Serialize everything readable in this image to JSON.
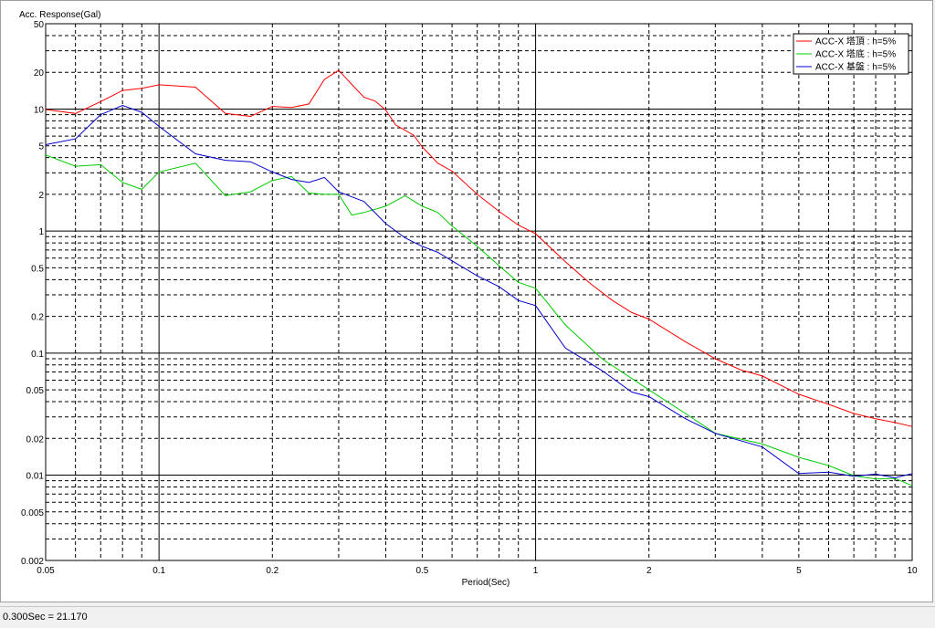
{
  "status": {
    "readout": "0.300Sec = 21.170"
  },
  "chart_data": {
    "type": "line",
    "ylabel": "Acc. Response(Gal)",
    "xlabel": "Period(Sec)",
    "xscale": "log",
    "yscale": "log",
    "xlim": [
      0.05,
      10
    ],
    "ylim": [
      0.002,
      50
    ],
    "grid": true,
    "legend_position": "top-right",
    "x_ticks": [
      {
        "value": 0.05,
        "label": "0.05"
      },
      {
        "value": 0.1,
        "label": "0.1"
      },
      {
        "value": 0.2,
        "label": "0.2"
      },
      {
        "value": 0.5,
        "label": "0.5"
      },
      {
        "value": 1,
        "label": "1"
      },
      {
        "value": 2,
        "label": "2"
      },
      {
        "value": 5,
        "label": "5"
      },
      {
        "value": 10,
        "label": "10"
      }
    ],
    "y_ticks": [
      {
        "value": 50,
        "label": "50"
      },
      {
        "value": 20,
        "label": "20"
      },
      {
        "value": 10,
        "label": "10"
      },
      {
        "value": 5,
        "label": "5"
      },
      {
        "value": 2,
        "label": "2"
      },
      {
        "value": 1,
        "label": "1"
      },
      {
        "value": 0.5,
        "label": "0.5"
      },
      {
        "value": 0.2,
        "label": "0.2"
      },
      {
        "value": 0.1,
        "label": "0.1"
      },
      {
        "value": 0.05,
        "label": "0.05"
      },
      {
        "value": 0.02,
        "label": "0.02"
      },
      {
        "value": 0.01,
        "label": "0.01"
      },
      {
        "value": 0.005,
        "label": "0.005"
      },
      {
        "value": 0.002,
        "label": "0.002"
      }
    ],
    "series": [
      {
        "name": "ACC-X 塔頂 : h=5%",
        "color": "#ff0000",
        "points": [
          [
            0.05,
            9.9
          ],
          [
            0.06,
            9.2
          ],
          [
            0.07,
            11.5
          ],
          [
            0.08,
            14.2
          ],
          [
            0.09,
            14.8
          ],
          [
            0.1,
            15.8
          ],
          [
            0.125,
            15.1
          ],
          [
            0.15,
            9.2
          ],
          [
            0.175,
            8.7
          ],
          [
            0.2,
            10.5
          ],
          [
            0.225,
            10.3
          ],
          [
            0.25,
            11.0
          ],
          [
            0.275,
            17.5
          ],
          [
            0.3,
            20.8
          ],
          [
            0.325,
            15.9
          ],
          [
            0.35,
            12.5
          ],
          [
            0.375,
            11.6
          ],
          [
            0.4,
            9.8
          ],
          [
            0.425,
            7.4
          ],
          [
            0.45,
            6.7
          ],
          [
            0.475,
            6.1
          ],
          [
            0.5,
            4.9
          ],
          [
            0.55,
            3.6
          ],
          [
            0.6,
            3.1
          ],
          [
            0.7,
            2.0
          ],
          [
            0.8,
            1.45
          ],
          [
            0.9,
            1.12
          ],
          [
            1.0,
            0.95
          ],
          [
            1.2,
            0.56
          ],
          [
            1.4,
            0.37
          ],
          [
            1.6,
            0.27
          ],
          [
            1.8,
            0.215
          ],
          [
            2.0,
            0.19
          ],
          [
            2.5,
            0.124
          ],
          [
            3.0,
            0.09
          ],
          [
            3.5,
            0.073
          ],
          [
            4.0,
            0.065
          ],
          [
            5.0,
            0.046
          ],
          [
            6.0,
            0.038
          ],
          [
            7.0,
            0.032
          ],
          [
            8.0,
            0.029
          ],
          [
            9.0,
            0.027
          ],
          [
            10.0,
            0.025
          ]
        ]
      },
      {
        "name": "ACC-X 塔底 : h=5%",
        "color": "#00cc00",
        "points": [
          [
            0.05,
            4.2
          ],
          [
            0.06,
            3.4
          ],
          [
            0.07,
            3.5
          ],
          [
            0.08,
            2.5
          ],
          [
            0.09,
            2.2
          ],
          [
            0.1,
            3.05
          ],
          [
            0.125,
            3.6
          ],
          [
            0.15,
            1.95
          ],
          [
            0.175,
            2.1
          ],
          [
            0.2,
            2.6
          ],
          [
            0.225,
            2.8
          ],
          [
            0.25,
            2.05
          ],
          [
            0.275,
            2.0
          ],
          [
            0.3,
            2.0
          ],
          [
            0.325,
            1.35
          ],
          [
            0.35,
            1.42
          ],
          [
            0.4,
            1.6
          ],
          [
            0.45,
            1.95
          ],
          [
            0.5,
            1.6
          ],
          [
            0.55,
            1.42
          ],
          [
            0.6,
            1.1
          ],
          [
            0.7,
            0.75
          ],
          [
            0.8,
            0.52
          ],
          [
            0.9,
            0.38
          ],
          [
            1.0,
            0.34
          ],
          [
            1.2,
            0.17
          ],
          [
            1.5,
            0.09
          ],
          [
            2.0,
            0.05
          ],
          [
            2.5,
            0.032
          ],
          [
            3.0,
            0.022
          ],
          [
            4.0,
            0.018
          ],
          [
            5.0,
            0.014
          ],
          [
            6.0,
            0.012
          ],
          [
            7.0,
            0.0099
          ],
          [
            8.0,
            0.0093
          ],
          [
            9.0,
            0.0094
          ],
          [
            10.0,
            0.0082
          ]
        ]
      },
      {
        "name": "ACC-X 基盤 : h=5%",
        "color": "#0000cc",
        "points": [
          [
            0.05,
            5.1
          ],
          [
            0.06,
            5.7
          ],
          [
            0.07,
            9.0
          ],
          [
            0.08,
            10.7
          ],
          [
            0.09,
            9.4
          ],
          [
            0.1,
            7.2
          ],
          [
            0.125,
            4.3
          ],
          [
            0.15,
            3.8
          ],
          [
            0.175,
            3.7
          ],
          [
            0.2,
            3.05
          ],
          [
            0.225,
            2.65
          ],
          [
            0.25,
            2.5
          ],
          [
            0.275,
            2.75
          ],
          [
            0.3,
            2.1
          ],
          [
            0.35,
            1.75
          ],
          [
            0.4,
            1.15
          ],
          [
            0.45,
            0.88
          ],
          [
            0.5,
            0.75
          ],
          [
            0.55,
            0.67
          ],
          [
            0.6,
            0.57
          ],
          [
            0.7,
            0.43
          ],
          [
            0.8,
            0.35
          ],
          [
            0.9,
            0.27
          ],
          [
            1.0,
            0.245
          ],
          [
            1.2,
            0.11
          ],
          [
            1.5,
            0.072
          ],
          [
            1.8,
            0.048
          ],
          [
            2.0,
            0.044
          ],
          [
            2.5,
            0.029
          ],
          [
            3.0,
            0.022
          ],
          [
            4.0,
            0.017
          ],
          [
            5.0,
            0.0103
          ],
          [
            6.0,
            0.0106
          ],
          [
            7.0,
            0.0098
          ],
          [
            8.0,
            0.0102
          ],
          [
            9.0,
            0.0095
          ],
          [
            10.0,
            0.0103
          ]
        ]
      }
    ]
  }
}
